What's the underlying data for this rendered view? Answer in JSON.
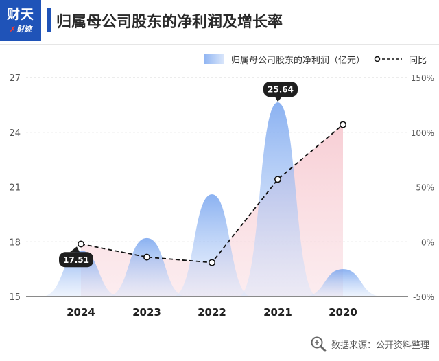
{
  "header": {
    "logo_main": "财天",
    "logo_sub_x": "✗",
    "logo_sub": "财迹",
    "title": "归属母公司股东的净利润及增长率"
  },
  "legend": {
    "bar_label": "归属母公司股东的净利润（亿元）",
    "line_label": "同比"
  },
  "watermark": {
    "text": "数据来源：公开资料整理",
    "icon": "magnifier-icon"
  },
  "colors": {
    "brand": "#1f53b8",
    "bar_top": "#6f9fee",
    "bar_bottom": "#dbe7fb",
    "area_pink": "#f7c9d0",
    "line": "#111111",
    "label_bg": "#1f1f1f"
  },
  "chart_data": {
    "type": "area",
    "categories": [
      "2024",
      "2023",
      "2022",
      "2021",
      "2020"
    ],
    "series": [
      {
        "name": "归属母公司股东的净利润（亿元）",
        "type": "bell",
        "values": [
          17.51,
          18.2,
          20.6,
          25.64,
          16.5
        ],
        "axis": "left"
      },
      {
        "name": "同比",
        "type": "line",
        "values": [
          -2,
          -14,
          -19,
          57,
          107
        ],
        "axis": "right"
      }
    ],
    "left_axis": {
      "min": 15,
      "max": 27,
      "ticks": [
        "15",
        "18",
        "21",
        "24",
        "27"
      ]
    },
    "right_axis": {
      "min": -50,
      "max": 150,
      "ticks": [
        "-50%",
        "0%",
        "50%",
        "100%",
        "150%"
      ]
    },
    "data_labels": [
      {
        "category": "2024",
        "text": "17.51"
      },
      {
        "category": "2021",
        "text": "25.64"
      }
    ],
    "grid": true,
    "legend_position": "top-right"
  }
}
